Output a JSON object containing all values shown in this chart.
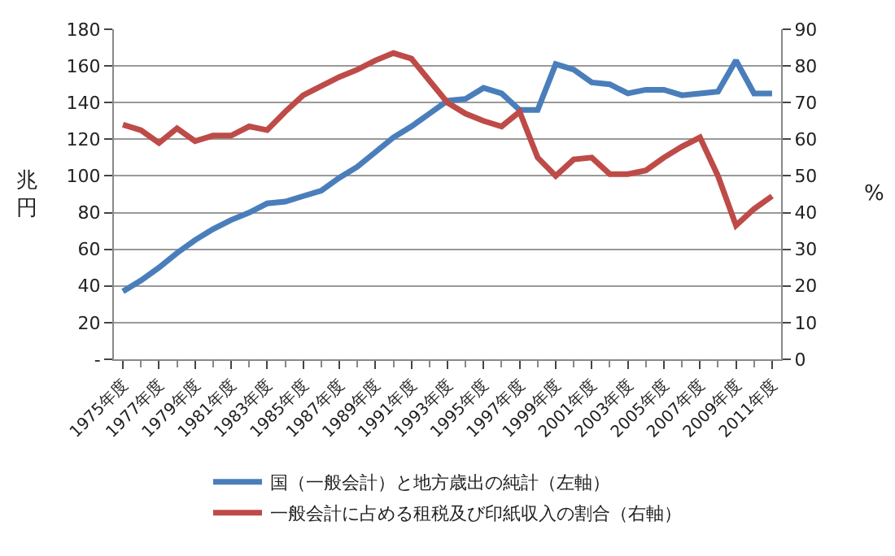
{
  "chart_data": {
    "type": "line",
    "categories": [
      "1975年度",
      null,
      "1977年度",
      null,
      "1979年度",
      null,
      "1981年度",
      null,
      "1983年度",
      null,
      "1985年度",
      null,
      "1987年度",
      null,
      "1989年度",
      null,
      "1991年度",
      null,
      "1993年度",
      null,
      "1995年度",
      null,
      "1997年度",
      null,
      "1999年度",
      null,
      "2001年度",
      null,
      "2003年度",
      null,
      "2005年度",
      null,
      "2007年度",
      null,
      "2009年度",
      null,
      "2011年度"
    ],
    "ylabel": "兆円",
    "y2label": "%",
    "ylim": [
      0,
      180
    ],
    "yticks": [
      {
        "value": 0,
        "label": "-"
      },
      20,
      40,
      60,
      80,
      100,
      120,
      140,
      160,
      180
    ],
    "y2lim": [
      0,
      90
    ],
    "y2ticks": [
      0,
      10,
      20,
      30,
      40,
      50,
      60,
      70,
      80,
      90
    ],
    "grid": "y",
    "legend": "bottom",
    "marker": "none",
    "line_style": "solid",
    "series": [
      {
        "name": "国（一般会計）と地方歳出の純計（左軸）",
        "color": "#4a7ebb",
        "values": [
          37,
          43,
          50,
          58,
          65,
          71,
          76,
          80,
          85,
          86,
          89,
          92,
          99,
          105,
          113,
          121,
          127,
          134,
          141,
          142,
          148,
          145,
          136,
          136,
          161,
          158,
          151,
          150,
          145,
          147,
          147,
          144,
          145,
          146,
          163,
          145,
          145
        ]
      },
      {
        "name": "一般会計に占める租税及び印紙収入の割合（右軸）",
        "color": "#be4b48",
        "axis": "y2",
        "values": [
          64,
          62.5,
          59,
          63,
          59.5,
          61,
          61,
          63.5,
          62.5,
          67.5,
          72,
          74.5,
          77,
          79,
          81.5,
          83.5,
          82,
          76,
          70,
          67,
          65,
          63.5,
          67.5,
          55,
          50,
          54.5,
          55,
          50.5,
          50.5,
          51.5,
          55,
          58,
          60.5,
          50,
          36.5,
          41,
          44.5
        ]
      }
    ]
  }
}
